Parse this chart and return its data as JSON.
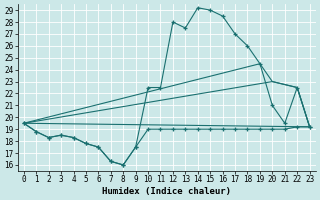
{
  "bg_color": "#cce8e8",
  "line_color": "#1a7070",
  "xlabel": "Humidex (Indice chaleur)",
  "xlim": [
    -0.5,
    23.5
  ],
  "ylim": [
    15.5,
    29.5
  ],
  "xticks": [
    0,
    1,
    2,
    3,
    4,
    5,
    6,
    7,
    8,
    9,
    10,
    11,
    12,
    13,
    14,
    15,
    16,
    17,
    18,
    19,
    20,
    21,
    22,
    23
  ],
  "yticks": [
    16,
    17,
    18,
    19,
    20,
    21,
    22,
    23,
    24,
    25,
    26,
    27,
    28,
    29
  ],
  "curve1_x": [
    0,
    1,
    2,
    3,
    4,
    5,
    6,
    7,
    8,
    9,
    10,
    11,
    12,
    13,
    14,
    15,
    16,
    17,
    18,
    19,
    20,
    21,
    22,
    23
  ],
  "curve1_y": [
    19.5,
    18.8,
    18.3,
    18.5,
    18.3,
    17.8,
    17.5,
    16.3,
    16.0,
    17.5,
    22.5,
    22.5,
    28.0,
    27.5,
    29.2,
    29.0,
    28.5,
    27.0,
    26.0,
    24.5,
    21.0,
    19.5,
    22.5,
    19.2
  ],
  "curve2_x": [
    0,
    1,
    2,
    3,
    4,
    5,
    6,
    7,
    8,
    9,
    10,
    11,
    12,
    13,
    14,
    15,
    16,
    17,
    18,
    19,
    20,
    21,
    22,
    23
  ],
  "curve2_y": [
    19.5,
    18.8,
    18.3,
    18.5,
    18.3,
    17.8,
    17.5,
    16.3,
    16.0,
    17.5,
    19.0,
    19.0,
    19.0,
    19.0,
    19.0,
    19.0,
    19.0,
    19.0,
    19.0,
    19.0,
    19.0,
    19.0,
    19.2,
    19.2
  ],
  "curve3_x": [
    0,
    23
  ],
  "curve3_y": [
    19.5,
    19.2
  ],
  "curve4_x": [
    0,
    20,
    22,
    23
  ],
  "curve4_y": [
    19.5,
    23.0,
    22.5,
    19.2
  ],
  "curve5_x": [
    0,
    19,
    20,
    22,
    23
  ],
  "curve5_y": [
    19.5,
    24.5,
    23.0,
    22.5,
    19.2
  ]
}
